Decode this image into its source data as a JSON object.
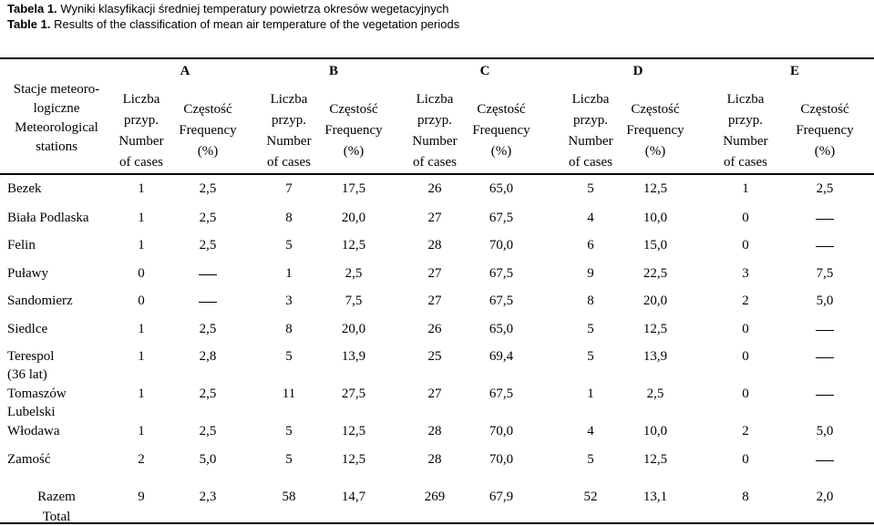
{
  "caption": {
    "pl_label": "Tabela 1.",
    "pl_title": "Wyniki klasyfikacji średniej temperatury powietrza okresów wegetacyjnych",
    "en_label": "Table 1.",
    "en_title": "Results of the classification of mean air temperature of the vegetation periods"
  },
  "header": {
    "stations_lines": [
      "Stacje meteoro-",
      "logiczne",
      "Meteorological",
      "stations"
    ],
    "groups": [
      "A",
      "B",
      "C",
      "D",
      "E"
    ],
    "count_lines": [
      "Liczba",
      "przyp.",
      "Number",
      "of cases"
    ],
    "freq_lines": [
      "Częstość",
      "Frequency",
      "(%)"
    ]
  },
  "dash_symbol": "–",
  "rows": [
    {
      "station": [
        "Bezek"
      ],
      "values": [
        "1",
        "2,5",
        "7",
        "17,5",
        "26",
        "65,0",
        "5",
        "12,5",
        "1",
        "2,5"
      ]
    },
    {
      "station": [
        "Biała Podlaska"
      ],
      "values": [
        "1",
        "2,5",
        "8",
        "20,0",
        "27",
        "67,5",
        "4",
        "10,0",
        "0",
        "–"
      ]
    },
    {
      "station": [
        "Felin"
      ],
      "values": [
        "1",
        "2,5",
        "5",
        "12,5",
        "28",
        "70,0",
        "6",
        "15,0",
        "0",
        "–"
      ]
    },
    {
      "station": [
        "Puławy"
      ],
      "values": [
        "0",
        "–",
        "1",
        "2,5",
        "27",
        "67,5",
        "9",
        "22,5",
        "3",
        "7,5"
      ]
    },
    {
      "station": [
        "Sandomierz"
      ],
      "values": [
        "0",
        "–",
        "3",
        "7,5",
        "27",
        "67,5",
        "8",
        "20,0",
        "2",
        "5,0"
      ]
    },
    {
      "station": [
        "Siedlce"
      ],
      "values": [
        "1",
        "2,5",
        "8",
        "20,0",
        "26",
        "65,0",
        "5",
        "12,5",
        "0",
        "–"
      ]
    },
    {
      "station": [
        "Terespol",
        "(36 lat)"
      ],
      "values": [
        "1",
        "2,8",
        "5",
        "13,9",
        "25",
        "69,4",
        "5",
        "13,9",
        "0",
        "–"
      ]
    },
    {
      "station": [
        "Tomaszów",
        "Lubelski"
      ],
      "values": [
        "1",
        "2,5",
        "11",
        "27,5",
        "27",
        "67,5",
        "1",
        "2,5",
        "0",
        "–"
      ]
    },
    {
      "station": [
        "Włodawa"
      ],
      "values": [
        "1",
        "2,5",
        "5",
        "12,5",
        "28",
        "70,0",
        "4",
        "10,0",
        "2",
        "5,0"
      ]
    },
    {
      "station": [
        "Zamość"
      ],
      "values": [
        "2",
        "5,0",
        "5",
        "12,5",
        "28",
        "70,0",
        "5",
        "12,5",
        "0",
        "–"
      ]
    }
  ],
  "total": {
    "label": [
      "Razem",
      "Total"
    ],
    "values": [
      "9",
      "2,3",
      "58",
      "14,7",
      "269",
      "67,9",
      "52",
      "13,1",
      "8",
      "2,0"
    ]
  }
}
